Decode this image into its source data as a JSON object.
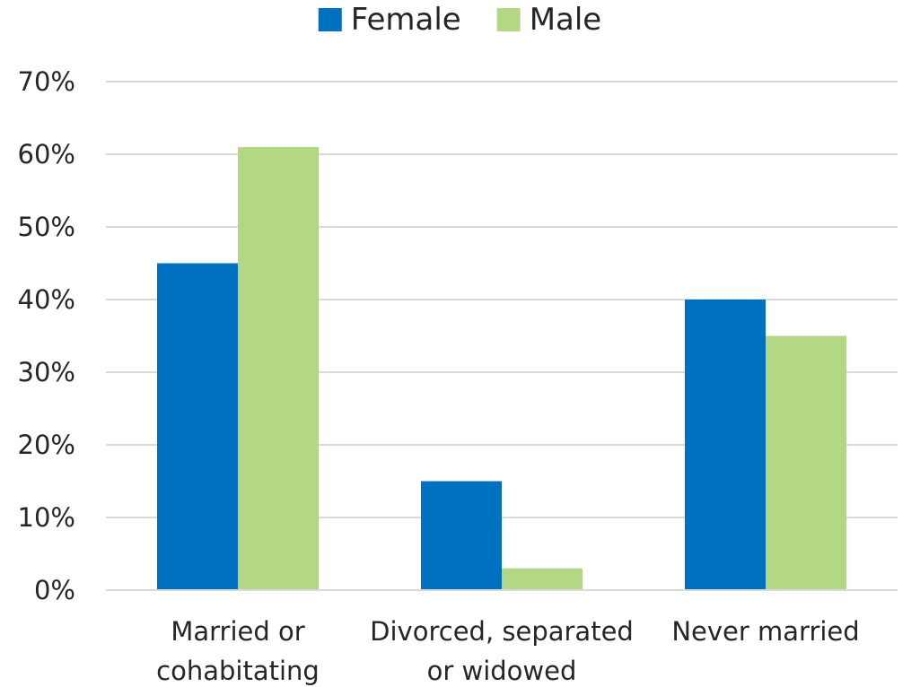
{
  "chart_data": {
    "type": "bar",
    "title": "",
    "xlabel": "",
    "ylabel": "",
    "categories": [
      [
        "Married or",
        "cohabitating"
      ],
      [
        "Divorced, separated",
        "or widowed"
      ],
      [
        "Never married"
      ]
    ],
    "series": [
      {
        "name": "Female",
        "color": "#0070C0",
        "values": [
          45,
          15,
          40
        ]
      },
      {
        "name": "Male",
        "color": "#B3D785",
        "values": [
          61,
          3,
          35
        ]
      }
    ],
    "ylim": [
      0,
      70
    ],
    "yticks": [
      0,
      10,
      20,
      30,
      40,
      50,
      60,
      70
    ],
    "ytick_labels": [
      "0%",
      "10%",
      "20%",
      "30%",
      "40%",
      "50%",
      "60%",
      "70%"
    ],
    "grid": true,
    "legend": "top-center",
    "gridline_color": "#D9D9D9"
  }
}
